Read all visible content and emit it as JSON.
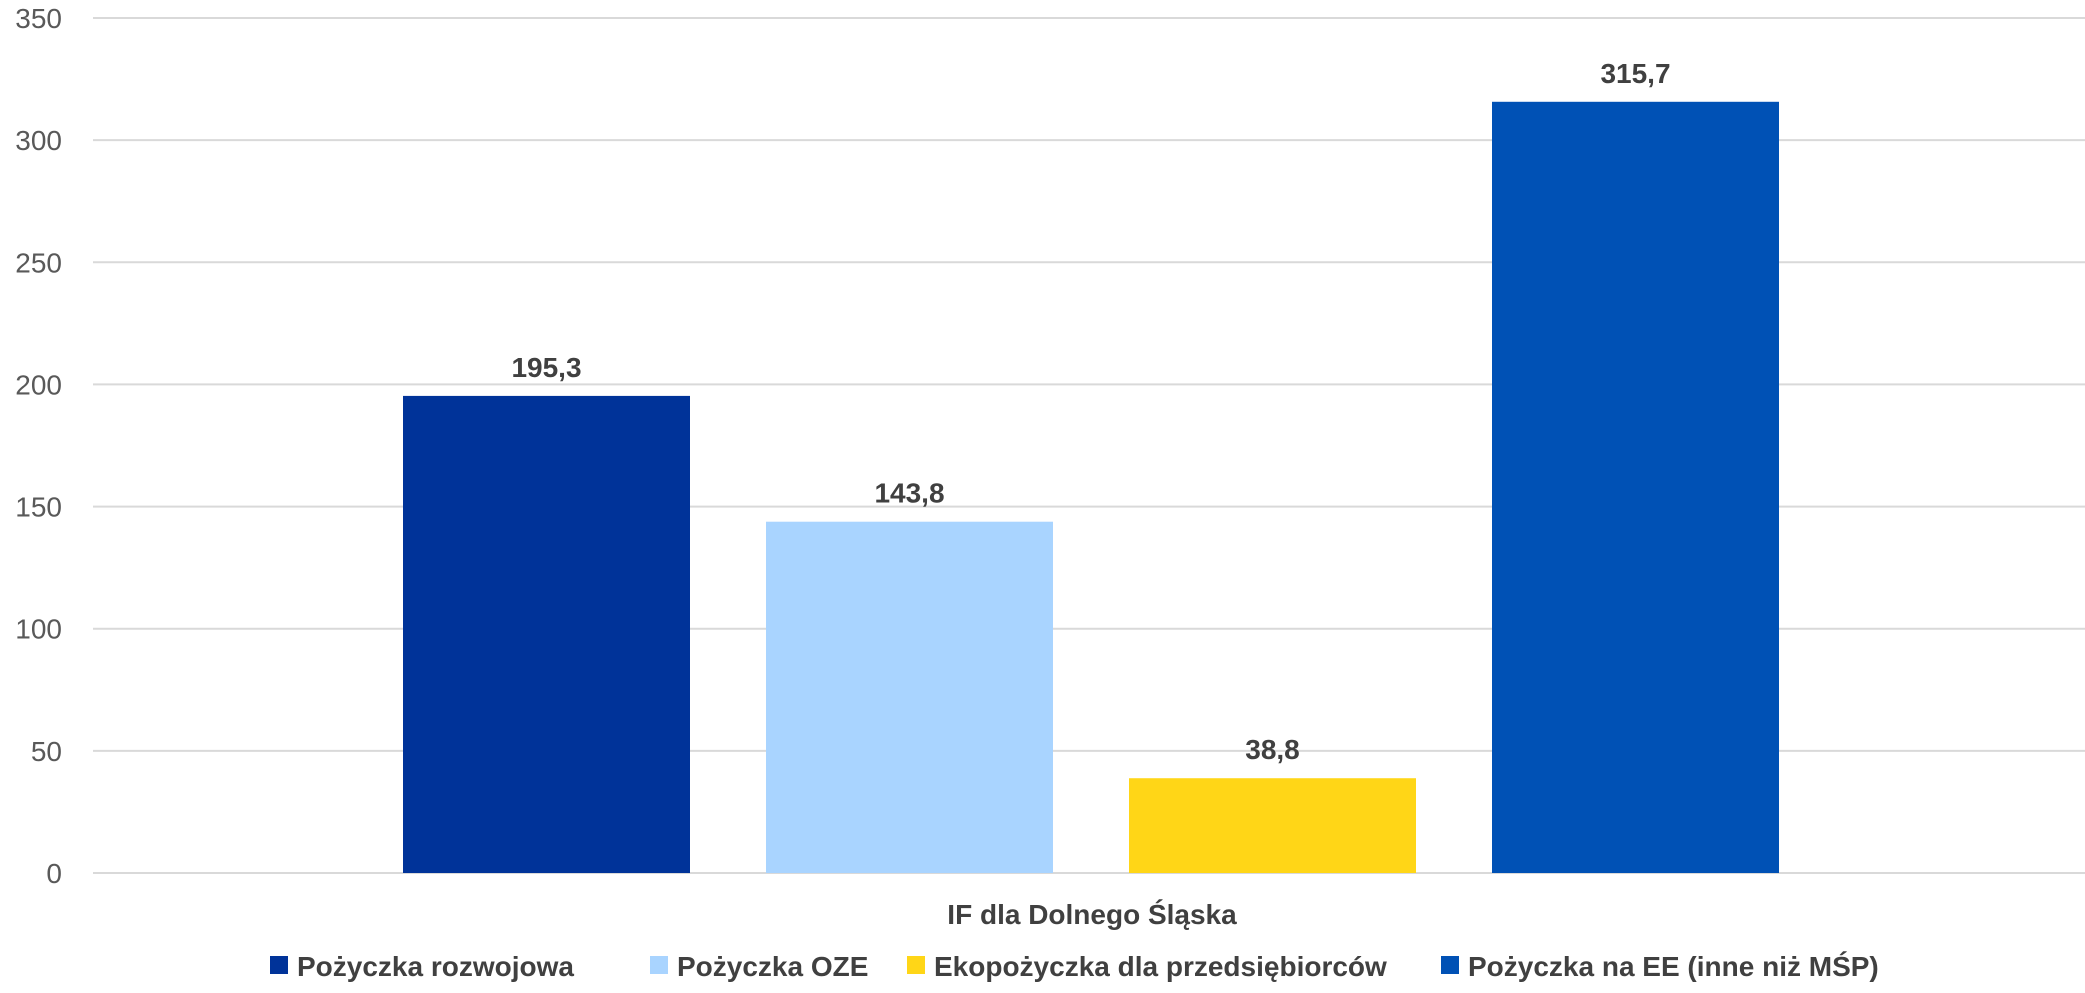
{
  "chart_data": {
    "type": "bar",
    "categories": [
      "IF dla Dolnego Śląska"
    ],
    "series": [
      {
        "name": "Pożyczka rozwojowa",
        "values": [
          195.3
        ],
        "label": "195,3",
        "color": "#003399"
      },
      {
        "name": "Pożyczka OZE",
        "values": [
          143.8
        ],
        "label": "143,8",
        "color": "#A9D4FF"
      },
      {
        "name": "Ekopożyczka dla przedsiębiorców",
        "values": [
          38.8
        ],
        "label": "38,8",
        "color": "#FFD617"
      },
      {
        "name": "Pożyczka na EE (inne niż MŚP)",
        "values": [
          315.7
        ],
        "label": "315,7",
        "color": "#0051B5"
      }
    ],
    "yticks": [
      0,
      50,
      100,
      150,
      200,
      250,
      300,
      350
    ],
    "ylim": [
      0,
      350
    ],
    "grid": true,
    "legend_position": "bottom"
  }
}
